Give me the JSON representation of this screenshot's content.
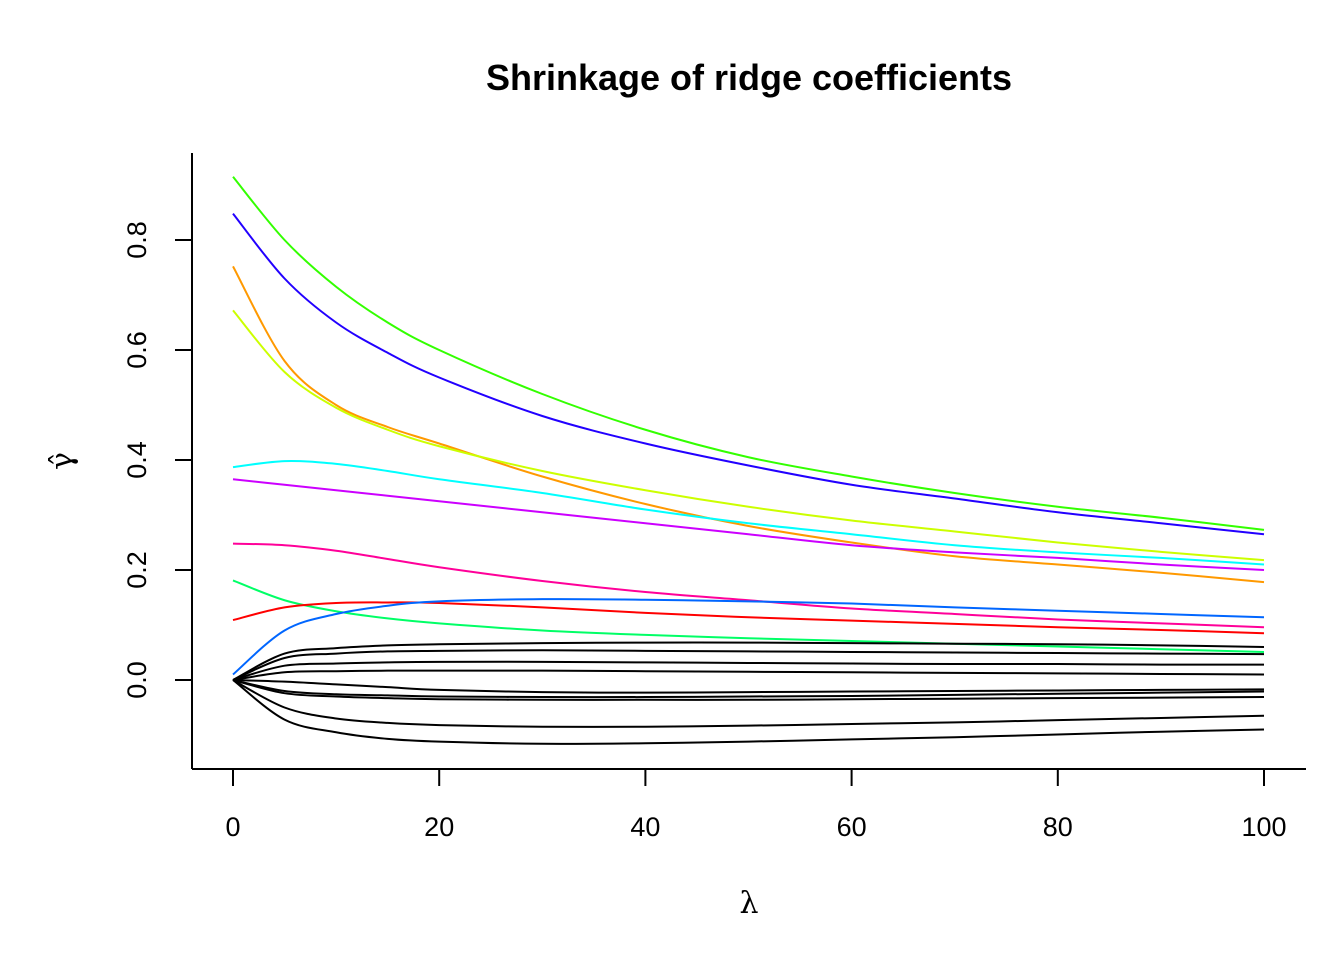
{
  "chart_data": {
    "type": "line",
    "title": "Shrinkage of ridge coefficients",
    "xlabel": "λ",
    "ylabel": "γ̂",
    "xlim": [
      0,
      100
    ],
    "ylim": [
      -0.16,
      0.95
    ],
    "x_ticks": [
      0,
      20,
      40,
      60,
      80,
      100
    ],
    "y_ticks": [
      0.0,
      0.2,
      0.4,
      0.6,
      0.8
    ],
    "y_tick_labels": [
      "0.0",
      "0.2",
      "0.4",
      "0.6",
      "0.8"
    ],
    "grid": false,
    "legend": "none",
    "x": [
      0,
      5,
      10,
      15,
      20,
      30,
      40,
      50,
      60,
      70,
      80,
      90,
      100
    ],
    "series": [
      {
        "color": "#33ff00",
        "values": [
          0.915,
          0.8,
          0.715,
          0.65,
          0.6,
          0.52,
          0.455,
          0.405,
          0.37,
          0.34,
          0.315,
          0.295,
          0.273
        ]
      },
      {
        "color": "#2200ff",
        "values": [
          0.848,
          0.73,
          0.65,
          0.595,
          0.55,
          0.48,
          0.43,
          0.39,
          0.355,
          0.33,
          0.305,
          0.285,
          0.265
        ]
      },
      {
        "color": "#ff9900",
        "values": [
          0.752,
          0.58,
          0.5,
          0.46,
          0.43,
          0.37,
          0.32,
          0.28,
          0.25,
          0.225,
          0.21,
          0.195,
          0.178
        ]
      },
      {
        "color": "#ccff00",
        "values": [
          0.672,
          0.56,
          0.495,
          0.455,
          0.425,
          0.38,
          0.345,
          0.315,
          0.29,
          0.27,
          0.25,
          0.233,
          0.218
        ]
      },
      {
        "color": "#00ffff",
        "values": [
          0.387,
          0.398,
          0.393,
          0.38,
          0.365,
          0.34,
          0.31,
          0.285,
          0.265,
          0.245,
          0.232,
          0.222,
          0.21
        ]
      },
      {
        "color": "#cc00ff",
        "values": [
          0.365,
          0.355,
          0.345,
          0.335,
          0.325,
          0.305,
          0.285,
          0.265,
          0.245,
          0.232,
          0.222,
          0.21,
          0.2
        ]
      },
      {
        "color": "#ff0099",
        "values": [
          0.248,
          0.245,
          0.235,
          0.22,
          0.205,
          0.18,
          0.16,
          0.145,
          0.13,
          0.12,
          0.11,
          0.103,
          0.096
        ]
      },
      {
        "color": "#00ff66",
        "values": [
          0.181,
          0.145,
          0.125,
          0.112,
          0.103,
          0.09,
          0.082,
          0.076,
          0.071,
          0.066,
          0.061,
          0.056,
          0.051
        ]
      },
      {
        "color": "#ff0000",
        "values": [
          0.109,
          0.132,
          0.14,
          0.141,
          0.14,
          0.132,
          0.122,
          0.114,
          0.108,
          0.102,
          0.096,
          0.091,
          0.085
        ]
      },
      {
        "color": "#0066ff",
        "values": [
          0.01,
          0.09,
          0.12,
          0.135,
          0.143,
          0.147,
          0.146,
          0.143,
          0.139,
          0.132,
          0.126,
          0.12,
          0.114
        ]
      },
      {
        "color": "#000000",
        "values": [
          0,
          0.048,
          0.058,
          0.063,
          0.065,
          0.067,
          0.068,
          0.068,
          0.067,
          0.066,
          0.065,
          0.063,
          0.06
        ]
      },
      {
        "color": "#000000",
        "values": [
          0,
          0.04,
          0.048,
          0.052,
          0.053,
          0.054,
          0.053,
          0.052,
          0.051,
          0.05,
          0.049,
          0.048,
          0.047
        ]
      },
      {
        "color": "#000000",
        "values": [
          0,
          0.026,
          0.03,
          0.032,
          0.033,
          0.033,
          0.032,
          0.031,
          0.03,
          0.029,
          0.029,
          0.028,
          0.028
        ]
      },
      {
        "color": "#000000",
        "values": [
          0,
          0.014,
          0.016,
          0.017,
          0.017,
          0.017,
          0.016,
          0.015,
          0.014,
          0.013,
          0.012,
          0.011,
          0.01
        ]
      },
      {
        "color": "#000000",
        "values": [
          0,
          -0.003,
          -0.008,
          -0.013,
          -0.018,
          -0.022,
          -0.023,
          -0.022,
          -0.021,
          -0.02,
          -0.019,
          -0.018,
          -0.017
        ]
      },
      {
        "color": "#000000",
        "values": [
          0,
          -0.02,
          -0.026,
          -0.028,
          -0.03,
          -0.031,
          -0.031,
          -0.03,
          -0.029,
          -0.027,
          -0.025,
          -0.023,
          -0.021
        ]
      },
      {
        "color": "#000000",
        "values": [
          0,
          -0.024,
          -0.03,
          -0.033,
          -0.035,
          -0.036,
          -0.036,
          -0.036,
          -0.035,
          -0.034,
          -0.033,
          -0.032,
          -0.031
        ]
      },
      {
        "color": "#000000",
        "values": [
          0,
          -0.05,
          -0.07,
          -0.078,
          -0.082,
          -0.085,
          -0.085,
          -0.083,
          -0.08,
          -0.077,
          -0.073,
          -0.069,
          -0.065
        ]
      },
      {
        "color": "#000000",
        "values": [
          0,
          -0.072,
          -0.095,
          -0.107,
          -0.112,
          -0.116,
          -0.115,
          -0.112,
          -0.108,
          -0.104,
          -0.099,
          -0.094,
          -0.09
        ]
      }
    ]
  }
}
